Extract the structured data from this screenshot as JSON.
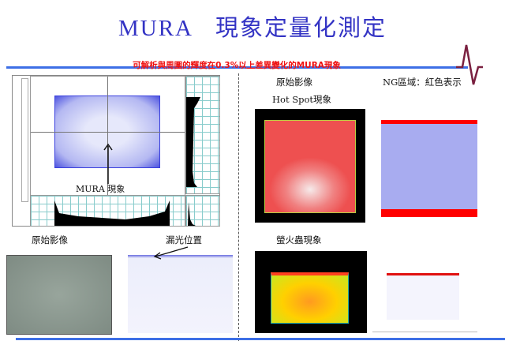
{
  "title": {
    "left": "MURA",
    "right": "現象定量化測定"
  },
  "subtitle": "可解析與周圍的輝度在0.3%以上差異變化的MURA現象",
  "analysis_panel": {
    "annotation": "MURA 現象"
  },
  "bottom_left": {
    "original_label": "原始影像",
    "leak_label": "漏光位置"
  },
  "right_top": {
    "original_label": "原始影像",
    "hotspot_label": "Hot Spot現象",
    "ng_label": "NG區域：紅色表示"
  },
  "right_bottom": {
    "firefly_label": "螢火蟲現象"
  },
  "colors": {
    "title": "#3333c4",
    "subtitle": "#ee1111",
    "rule": "#3d6fe6",
    "ng": "#ff0000"
  }
}
